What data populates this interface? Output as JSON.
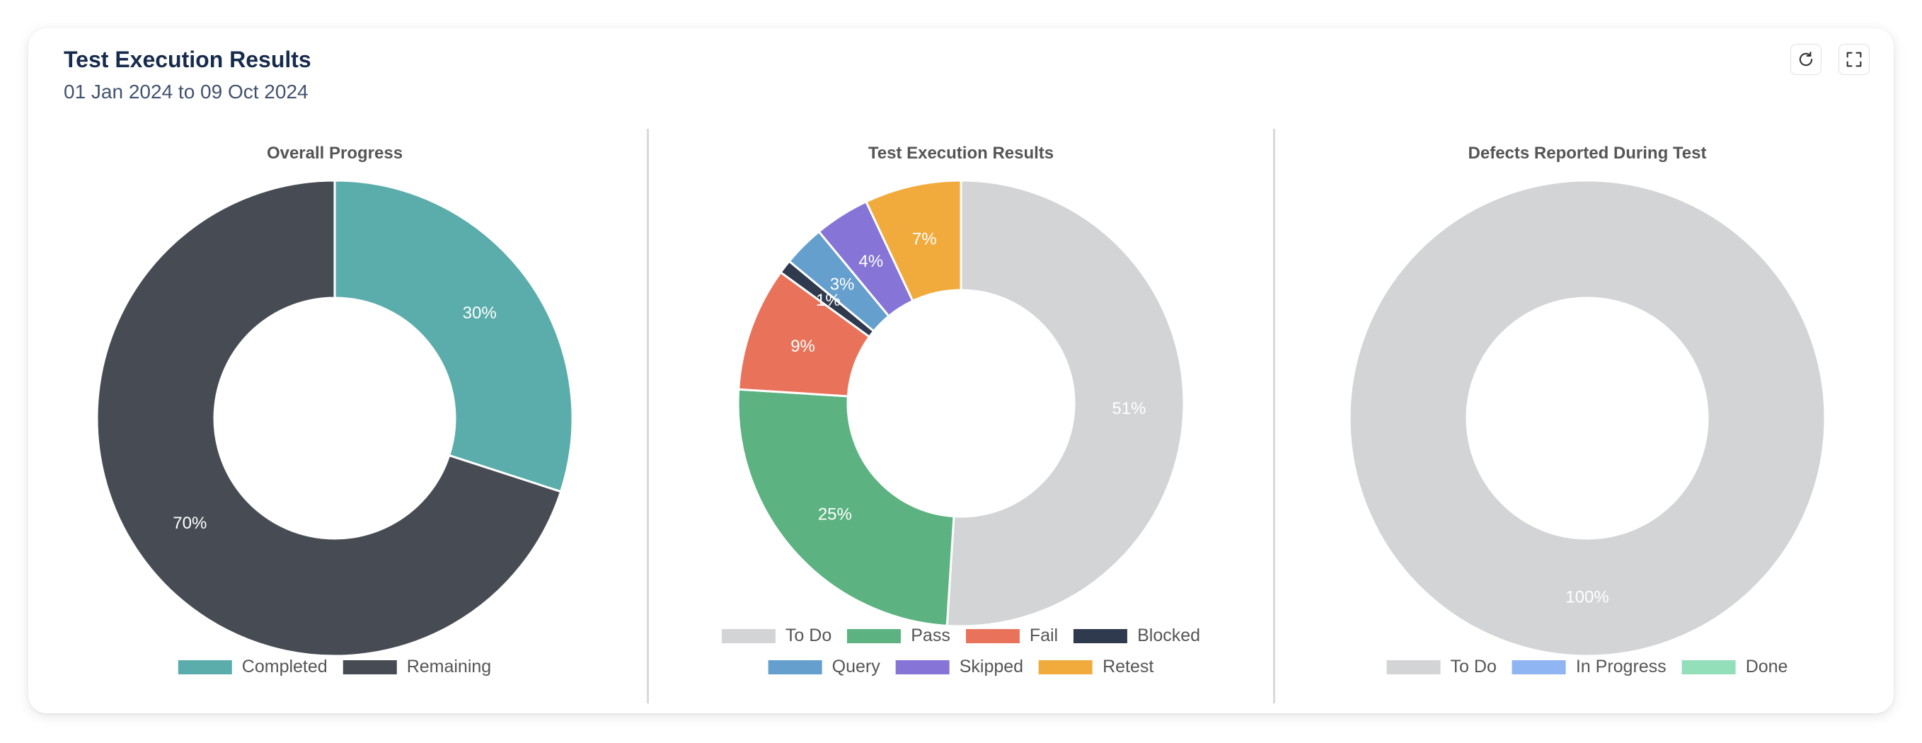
{
  "card": {
    "title": "Test Execution Results",
    "subtitle": "01 Jan 2024 to 09 Oct 2024"
  },
  "toolbar": {
    "refresh_icon": "refresh-icon",
    "fullscreen_icon": "fullscreen-icon"
  },
  "chart_data": [
    {
      "type": "pie",
      "title": "Overall Progress",
      "categories": [
        "Completed",
        "Remaining"
      ],
      "values": [
        30,
        70
      ],
      "labels": [
        "30%",
        "70%"
      ],
      "colors": [
        "#5badab",
        "#474b53"
      ],
      "legend_placement": "bottom"
    },
    {
      "type": "pie",
      "title": "Test Execution Results",
      "categories": [
        "To Do",
        "Pass",
        "Fail",
        "Blocked",
        "Query",
        "Skipped",
        "Retest"
      ],
      "values": [
        51,
        25,
        9,
        1,
        3,
        4,
        7
      ],
      "labels": [
        "51%",
        "25%",
        "9%",
        "1%",
        "3%",
        "4%",
        "7%"
      ],
      "colors": [
        "#d3d4d6",
        "#5cb281",
        "#e9735a",
        "#2f3a4e",
        "#659fcd",
        "#8675d6",
        "#f1ab3c"
      ],
      "legend_placement": "bottom"
    },
    {
      "type": "pie",
      "title": "Defects Reported During Test",
      "categories": [
        "To Do",
        "In Progress",
        "Done"
      ],
      "values": [
        100,
        0,
        0
      ],
      "labels": [
        "100%",
        "",
        ""
      ],
      "colors": [
        "#d3d4d6",
        "#8fb5f2",
        "#93dfba"
      ],
      "legend_placement": "bottom"
    }
  ]
}
